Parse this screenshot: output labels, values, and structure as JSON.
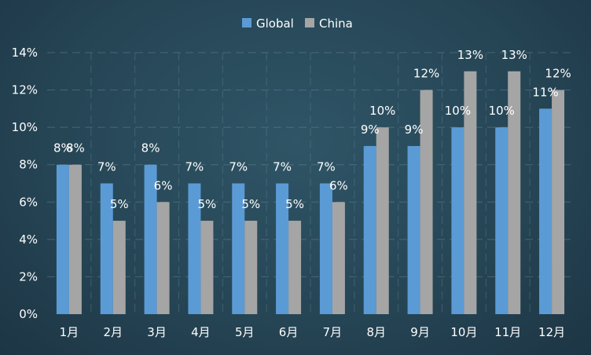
{
  "chart_data": {
    "type": "bar",
    "categories": [
      "1月",
      "2月",
      "3月",
      "4月",
      "5月",
      "6月",
      "7月",
      "8月",
      "9月",
      "10月",
      "11月",
      "12月"
    ],
    "series": [
      {
        "name": "Global",
        "values": [
          8,
          7,
          8,
          7,
          7,
          7,
          7,
          9,
          9,
          10,
          10,
          11
        ],
        "color": "#5b9bd5"
      },
      {
        "name": "China",
        "values": [
          8,
          5,
          6,
          5,
          5,
          5,
          6,
          10,
          12,
          13,
          13,
          12
        ],
        "color": "#a5a5a5"
      }
    ],
    "ylim": [
      0,
      14
    ],
    "yticks": [
      0,
      2,
      4,
      6,
      8,
      10,
      12,
      14
    ],
    "ytick_suffix": "%",
    "data_label_suffix": "%",
    "legend": "top-center",
    "grid": true
  }
}
